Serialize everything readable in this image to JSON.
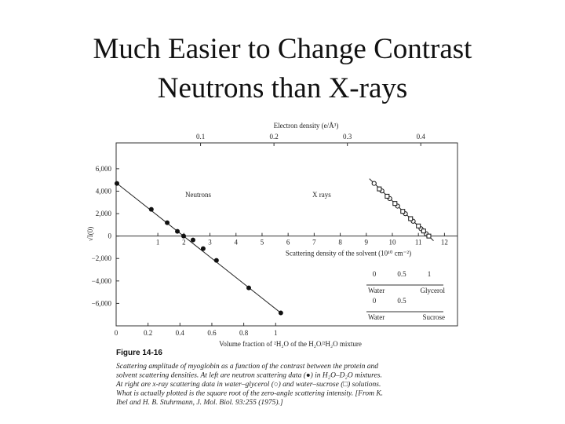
{
  "title_lines": [
    "Much Easier to Change Contrast",
    "Neutrons than X-rays"
  ],
  "chart_data": {
    "type": "scatter",
    "xlabel": "Scattering  density of the solvent (10¹⁰ cm⁻²)",
    "ylabel": "√I(0)",
    "xlim": [
      -0.6,
      12.5
    ],
    "xticks": [
      1,
      2,
      3,
      4,
      5,
      6,
      7,
      8,
      9,
      10,
      11,
      12
    ],
    "ylim": [
      -8000,
      8300
    ],
    "yticks": [
      {
        "value": 6000,
        "label": "6,000"
      },
      {
        "value": 4000,
        "label": "4,000"
      },
      {
        "value": 2000,
        "label": "2,000"
      },
      0,
      {
        "value": -2000,
        "label": "−2,000"
      },
      {
        "value": -4000,
        "label": "−4,000"
      },
      {
        "value": -6000,
        "label": "−6,000"
      }
    ],
    "top_axis": {
      "label": "Electron density (e/Å³)",
      "lim": [
        -0.015,
        0.45
      ],
      "ticks": [
        0.1,
        0.2,
        0.3,
        0.4
      ]
    },
    "bottom_axis": {
      "label": "Volume fraction of ²H₂O of the H₂O/²H₂O mixture",
      "lim": [
        0,
        2.14
      ],
      "ticks": [
        0,
        0.2,
        0.4,
        0.6,
        0.8,
        1
      ]
    },
    "annotations": [
      "Neutrons",
      "X rays"
    ],
    "series": [
      {
        "name": "Neutrons",
        "marker": "filled-circle",
        "color": "#111",
        "x": [
          -0.57,
          0.75,
          1.36,
          1.75,
          1.99,
          2.35,
          2.74,
          3.25,
          4.49,
          5.72
        ],
        "values": [
          4690,
          2380,
          1190,
          420,
          0,
          -350,
          -1120,
          -2170,
          -4620,
          -6850
        ]
      },
      {
        "name": "Water–glycerol",
        "marker": "open-circle",
        "color": "#111",
        "x": [
          9.3,
          9.6,
          9.9,
          10.2,
          10.5,
          10.8,
          11.1,
          11.3
        ],
        "values": [
          4690,
          4020,
          3340,
          2670,
          1990,
          1320,
          650,
          200
        ]
      },
      {
        "name": "Water–sucrose",
        "marker": "open-square",
        "color": "#111",
        "x": [
          9.5,
          9.8,
          10.1,
          10.4,
          10.7,
          11.0,
          11.2,
          11.4
        ],
        "values": [
          4200,
          3550,
          2900,
          2200,
          1550,
          900,
          450,
          0
        ]
      }
    ],
    "solvent_scales": [
      {
        "ticks": [
          0,
          0.5,
          1
        ],
        "ends": [
          "Water",
          "Glycerol"
        ]
      },
      {
        "ticks": [
          0,
          0.5
        ],
        "ends": [
          "Water",
          "Sucrose"
        ]
      }
    ],
    "figure_label": "Figure 14-16",
    "caption_lines": [
      "Scattering amplitude of myoglobin as a function of the contrast between the protein and",
      "solvent scattering densities. At left are neutron scattering data (●) in H₂O–D₂O mixtures.",
      "At right are x-ray scattering data in water–glycerol (○) and water–sucrose (□) solutions.",
      "What is actually plotted is the square root of the zero-angle scattering intensity. [From K.",
      "Ibel and H. B. Stuhrmann, J. Mol. Biol. 93:255 (1975).]"
    ]
  }
}
